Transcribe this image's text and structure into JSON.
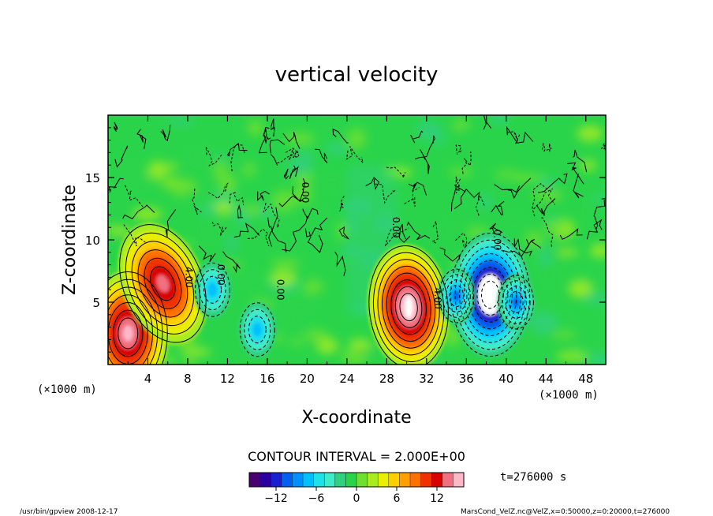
{
  "chart_data": {
    "type": "heatmap",
    "title": "vertical velocity",
    "xlabel": "X-coordinate",
    "ylabel": "Z-coordinate",
    "x_unit_left": "(×1000 m)",
    "x_unit_right": "(×1000 m)",
    "xlim": [
      0,
      50
    ],
    "ylim": [
      0,
      20
    ],
    "xticks": [
      "4",
      "8",
      "12",
      "16",
      "20",
      "24",
      "28",
      "32",
      "36",
      "40",
      "44",
      "48"
    ],
    "xtick_values": [
      4,
      8,
      12,
      16,
      20,
      24,
      28,
      32,
      36,
      40,
      44,
      48
    ],
    "yticks": [
      "5",
      "10",
      "15"
    ],
    "ytick_values": [
      5,
      10,
      15
    ],
    "contour_interval_label": "CONTOUR INTERVAL = 2.000E+00",
    "contour_labels": [
      {
        "text": "4.00",
        "x": 7.8,
        "z": 7.0
      },
      {
        "text": "4.00",
        "x": 32.8,
        "z": 5.3
      },
      {
        "text": "0.00",
        "x": 11.0,
        "z": 7.2
      },
      {
        "text": "0.00",
        "x": 17.0,
        "z": 6.0
      },
      {
        "text": "0.00",
        "x": 19.5,
        "z": 13.8
      },
      {
        "text": "0.00",
        "x": 28.6,
        "z": 11.0
      },
      {
        "text": "0.00",
        "x": 38.8,
        "z": 10.0
      }
    ],
    "features": [
      {
        "kind": "updraft",
        "x": 2.0,
        "z": 2.5,
        "peak": 14
      },
      {
        "kind": "updraft",
        "x": 5.5,
        "z": 6.5,
        "peak": 12
      },
      {
        "kind": "updraft",
        "x": 30.2,
        "z": 4.6,
        "peak": 16
      },
      {
        "kind": "downdraft",
        "x": 38.4,
        "z": 5.6,
        "peak": -16
      },
      {
        "kind": "downdraft",
        "x": 10.5,
        "z": 6.0,
        "peak": -6
      },
      {
        "kind": "downdraft",
        "x": 15.0,
        "z": 2.8,
        "peak": -6
      },
      {
        "kind": "downdraft",
        "x": 35.0,
        "z": 5.5,
        "peak": -8
      },
      {
        "kind": "downdraft",
        "x": 41.0,
        "z": 5.0,
        "peak": -8
      }
    ],
    "colorbar": {
      "min": -16,
      "max": 16,
      "tick_labels": [
        "−12",
        "−6",
        "0",
        "6",
        "12"
      ],
      "tick_values": [
        -12,
        -6,
        0,
        6,
        12
      ],
      "colors": [
        "#4a0070",
        "#2a00a0",
        "#1a20d0",
        "#0060f0",
        "#0090ff",
        "#00c0ff",
        "#20e0e8",
        "#40ecc8",
        "#30d080",
        "#2ad44a",
        "#6ee030",
        "#a8ec20",
        "#e8f000",
        "#ffd000",
        "#ffa000",
        "#ff7000",
        "#f03000",
        "#d80000",
        "#f07080",
        "#ffb8c8"
      ]
    },
    "time_label": "t=276000 s",
    "footer_left": "/usr/bin/gpview  2008-12-17",
    "footer_right": "MarsCond_VelZ.nc@VelZ,x=0:50000,z=0:20000,t=276000"
  }
}
